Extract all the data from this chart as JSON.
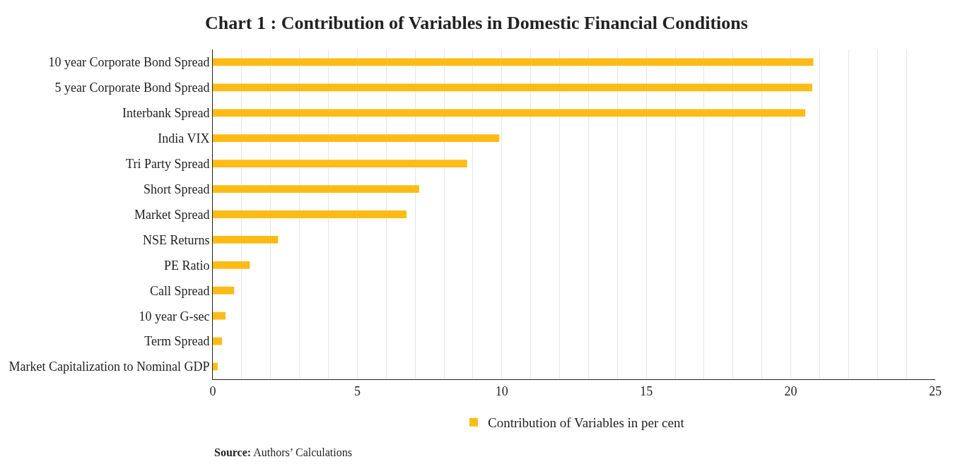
{
  "chart_data": {
    "type": "bar",
    "orientation": "horizontal",
    "title": "Chart 1 : Contribution of Variables in Domestic Financial Conditions",
    "categories": [
      "10 year Corporate Bond Spread",
      "5 year Corporate Bond Spread",
      "Interbank Spread",
      "India VIX",
      "Tri Party Spread",
      "Short Spread",
      "Market Spread",
      "NSE Returns",
      "PE Ratio",
      "Call Spread",
      "10 year G-sec",
      "Term Spread",
      "Market Capitalization to Nominal GDP"
    ],
    "series": [
      {
        "name": "Contribution of Variables in per cent",
        "color": "#fdbc15",
        "values": [
          20.78,
          20.74,
          20.5,
          9.91,
          8.8,
          7.14,
          6.7,
          2.26,
          1.28,
          0.74,
          0.44,
          0.32,
          0.17
        ]
      }
    ],
    "xlim": [
      0,
      25
    ],
    "xticks": [
      0,
      {
        "value": 1,
        "label": null
      },
      {
        "value": 2,
        "label": null
      },
      {
        "value": 3,
        "label": null
      },
      {
        "value": 4,
        "label": null
      },
      5,
      {
        "value": 6,
        "label": null
      },
      {
        "value": 7,
        "label": null
      },
      {
        "value": 8,
        "label": null
      },
      {
        "value": 9,
        "label": null
      },
      10,
      {
        "value": 11,
        "label": null
      },
      {
        "value": 12,
        "label": null
      },
      {
        "value": 13,
        "label": null
      },
      {
        "value": 14,
        "label": null
      },
      15,
      {
        "value": 16,
        "label": null
      },
      {
        "value": 17,
        "label": null
      },
      {
        "value": 18,
        "label": null
      },
      {
        "value": 19,
        "label": null
      },
      20,
      {
        "value": 21,
        "label": null
      },
      {
        "value": 22,
        "label": null
      },
      {
        "value": 23,
        "label": null
      },
      {
        "value": 24,
        "label": null
      },
      25
    ],
    "grid": "x",
    "legend": "bottom",
    "annotations": [
      "Source: Authors’ Calculations"
    ]
  }
}
